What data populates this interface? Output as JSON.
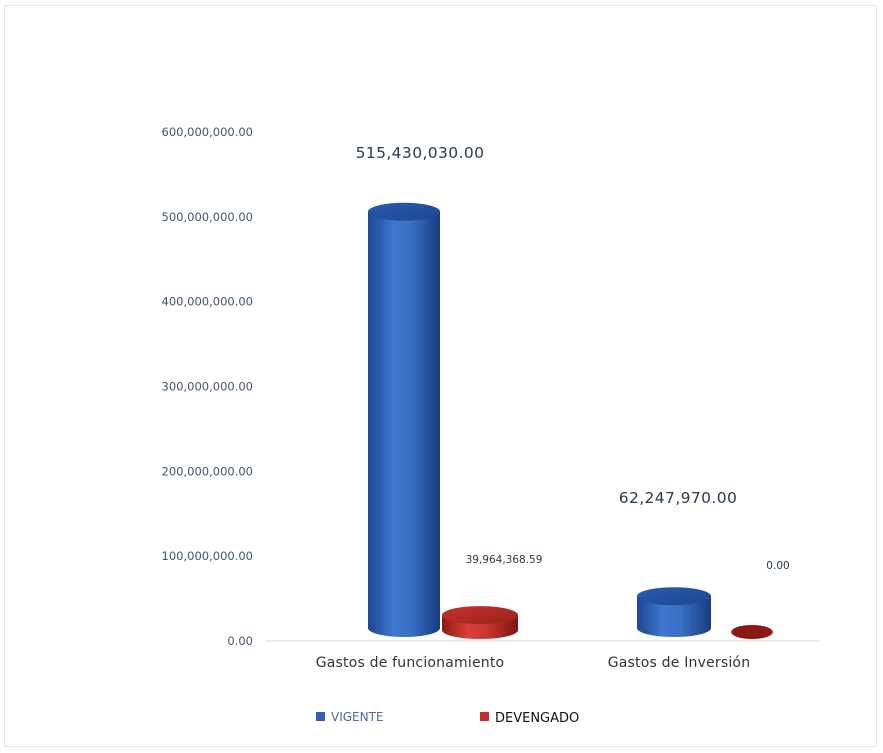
{
  "chart_data": {
    "type": "bar",
    "style": "3d-cylinder",
    "categories": [
      "Gastos de funcionamiento",
      "Gastos de  Inversión"
    ],
    "series": [
      {
        "name": "VIGENTE",
        "color": "#2e62b8",
        "values": [
          515430030.0,
          62247970.0
        ],
        "labels": [
          "515,430,030.00",
          "62,247,970.00"
        ]
      },
      {
        "name": "DEVENGADO",
        "color": "#c0302a",
        "values": [
          39964368.59,
          0.0
        ],
        "labels": [
          "39,964,368.59",
          "0.00"
        ]
      }
    ],
    "yticks": [
      "0.00",
      "100,000,000.00",
      "200,000,000.00",
      "300,000,000.00",
      "400,000,000.00",
      "500,000,000.00",
      "600,000,000.00"
    ],
    "ylim": [
      0,
      600000000
    ],
    "grid": false,
    "legend_position": "bottom"
  }
}
